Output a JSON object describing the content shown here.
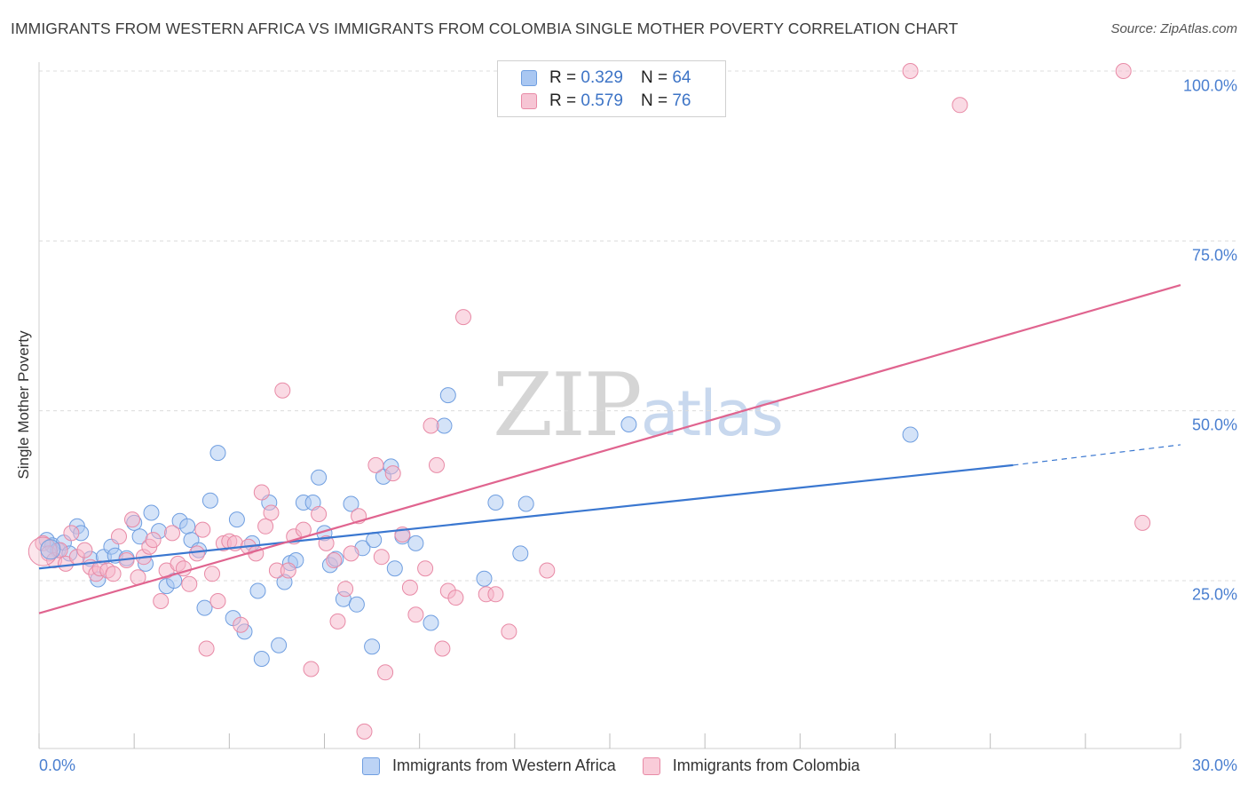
{
  "title": "IMMIGRANTS FROM WESTERN AFRICA VS IMMIGRANTS FROM COLOMBIA SINGLE MOTHER POVERTY CORRELATION CHART",
  "source": "Source: ZipAtlas.com",
  "watermark": {
    "zip": "ZIP",
    "atlas": "atlas"
  },
  "colors": {
    "blue_fill": "#a9c7f2",
    "blue_stroke": "#6f9ee0",
    "blue_line": "#3a77d0",
    "pink_fill": "#f6b6c9",
    "pink_stroke": "#e88aa6",
    "pink_line": "#e0648f",
    "tick_label": "#4a7fd0",
    "grid": "#dcdcdc"
  },
  "legend_top": {
    "rows": [
      {
        "r_label": "R = ",
        "r_value": "0.329",
        "n_label": "N = ",
        "n_value": "64"
      },
      {
        "r_label": "R = ",
        "r_value": "0.579",
        "n_label": "N = ",
        "n_value": "76"
      }
    ]
  },
  "legend_bottom": [
    "Immigrants from Western Africa",
    "Immigrants from Colombia"
  ],
  "chart_data": {
    "type": "scatter",
    "title": "IMMIGRANTS FROM WESTERN AFRICA VS IMMIGRANTS FROM COLOMBIA SINGLE MOTHER POVERTY CORRELATION CHART",
    "xlabel": "",
    "ylabel": "Single Mother Poverty",
    "xlim": [
      0,
      30
    ],
    "ylim": [
      0,
      105
    ],
    "x_tick_labels": [
      "0.0%",
      "30.0%"
    ],
    "y_ticks": [
      25,
      50,
      75,
      100
    ],
    "y_tick_labels": [
      "25.0%",
      "50.0%",
      "75.0%",
      "100.0%"
    ],
    "grid": true,
    "legend_position": "top-center",
    "series": [
      {
        "name": "Immigrants from Western Africa",
        "color": "blue",
        "R": 0.329,
        "N": 64,
        "trend": {
          "x0": 0,
          "y0": 26.8,
          "x1": 25.6,
          "y1": 42.0,
          "dash_to_x": 30,
          "dash_to_y": 45.0
        },
        "points": [
          [
            0.2,
            31.0
          ],
          [
            0.35,
            30.2
          ],
          [
            0.5,
            29.5
          ],
          [
            0.65,
            30.6
          ],
          [
            0.8,
            29.0
          ],
          [
            1.0,
            33.0
          ],
          [
            1.1,
            32.0
          ],
          [
            1.35,
            28.2
          ],
          [
            1.55,
            25.2
          ],
          [
            1.7,
            28.5
          ],
          [
            1.9,
            30.0
          ],
          [
            2.0,
            28.7
          ],
          [
            2.3,
            28.3
          ],
          [
            2.5,
            33.5
          ],
          [
            2.65,
            31.5
          ],
          [
            2.8,
            27.5
          ],
          [
            2.95,
            35.0
          ],
          [
            3.15,
            32.3
          ],
          [
            3.35,
            24.2
          ],
          [
            3.55,
            25.0
          ],
          [
            3.7,
            33.8
          ],
          [
            3.9,
            33.0
          ],
          [
            4.0,
            31.0
          ],
          [
            4.2,
            29.5
          ],
          [
            4.35,
            21.0
          ],
          [
            4.5,
            36.8
          ],
          [
            4.7,
            43.8
          ],
          [
            5.1,
            19.5
          ],
          [
            5.2,
            34.0
          ],
          [
            5.4,
            17.5
          ],
          [
            5.6,
            30.5
          ],
          [
            5.75,
            23.5
          ],
          [
            5.85,
            13.5
          ],
          [
            6.05,
            36.5
          ],
          [
            6.3,
            15.5
          ],
          [
            6.45,
            24.8
          ],
          [
            6.6,
            27.6
          ],
          [
            6.75,
            28.0
          ],
          [
            6.95,
            36.5
          ],
          [
            7.2,
            36.5
          ],
          [
            7.35,
            40.2
          ],
          [
            7.5,
            32.0
          ],
          [
            7.65,
            27.3
          ],
          [
            7.8,
            28.2
          ],
          [
            8.0,
            22.3
          ],
          [
            8.2,
            36.3
          ],
          [
            8.35,
            21.5
          ],
          [
            8.5,
            29.8
          ],
          [
            8.75,
            15.3
          ],
          [
            8.8,
            31.0
          ],
          [
            9.05,
            40.3
          ],
          [
            9.25,
            41.8
          ],
          [
            9.35,
            26.8
          ],
          [
            9.55,
            31.5
          ],
          [
            9.9,
            30.5
          ],
          [
            10.3,
            18.8
          ],
          [
            10.65,
            47.8
          ],
          [
            10.75,
            52.3
          ],
          [
            11.7,
            25.3
          ],
          [
            12.0,
            36.5
          ],
          [
            12.65,
            29.0
          ],
          [
            12.8,
            36.3
          ],
          [
            15.5,
            48.0
          ],
          [
            22.9,
            46.5
          ]
        ]
      },
      {
        "name": "Immigrants from Colombia",
        "color": "pink",
        "R": 0.579,
        "N": 76,
        "trend": {
          "x0": 0,
          "y0": 20.2,
          "x1": 30,
          "y1": 68.5
        },
        "points": [
          [
            0.1,
            30.5
          ],
          [
            0.25,
            29.0
          ],
          [
            0.4,
            28.0
          ],
          [
            0.55,
            29.5
          ],
          [
            0.7,
            27.5
          ],
          [
            0.85,
            32.0
          ],
          [
            1.0,
            28.5
          ],
          [
            1.2,
            29.5
          ],
          [
            1.35,
            27.0
          ],
          [
            1.5,
            26.0
          ],
          [
            1.6,
            26.8
          ],
          [
            1.8,
            26.5
          ],
          [
            1.95,
            26.0
          ],
          [
            2.1,
            31.5
          ],
          [
            2.3,
            28.0
          ],
          [
            2.45,
            34.0
          ],
          [
            2.6,
            25.5
          ],
          [
            2.75,
            28.5
          ],
          [
            2.9,
            30.0
          ],
          [
            3.0,
            31.0
          ],
          [
            3.2,
            22.0
          ],
          [
            3.35,
            26.5
          ],
          [
            3.5,
            32.0
          ],
          [
            3.65,
            27.5
          ],
          [
            3.8,
            26.8
          ],
          [
            3.95,
            24.5
          ],
          [
            4.15,
            29.0
          ],
          [
            4.3,
            32.5
          ],
          [
            4.4,
            15.0
          ],
          [
            4.55,
            26.0
          ],
          [
            4.7,
            22.0
          ],
          [
            4.85,
            30.5
          ],
          [
            5.0,
            30.8
          ],
          [
            5.15,
            30.5
          ],
          [
            5.3,
            18.5
          ],
          [
            5.5,
            30.0
          ],
          [
            5.7,
            29.0
          ],
          [
            5.85,
            38.0
          ],
          [
            5.95,
            33.0
          ],
          [
            6.1,
            35.0
          ],
          [
            6.25,
            26.5
          ],
          [
            6.4,
            53.0
          ],
          [
            6.55,
            26.5
          ],
          [
            6.7,
            31.5
          ],
          [
            6.95,
            32.5
          ],
          [
            7.15,
            12.0
          ],
          [
            7.35,
            34.8
          ],
          [
            7.55,
            30.5
          ],
          [
            7.75,
            28.0
          ],
          [
            7.85,
            19.0
          ],
          [
            8.05,
            23.8
          ],
          [
            8.2,
            29.0
          ],
          [
            8.4,
            34.5
          ],
          [
            8.55,
            2.8
          ],
          [
            8.85,
            42.0
          ],
          [
            9.0,
            28.5
          ],
          [
            9.1,
            11.5
          ],
          [
            9.3,
            40.8
          ],
          [
            9.55,
            31.8
          ],
          [
            9.75,
            24.0
          ],
          [
            9.9,
            20.0
          ],
          [
            10.15,
            26.8
          ],
          [
            10.3,
            47.8
          ],
          [
            10.45,
            42.0
          ],
          [
            10.6,
            15.0
          ],
          [
            10.75,
            23.5
          ],
          [
            10.95,
            22.5
          ],
          [
            11.15,
            63.8
          ],
          [
            11.75,
            23.0
          ],
          [
            12.35,
            17.5
          ],
          [
            13.35,
            26.5
          ],
          [
            22.9,
            100.0
          ],
          [
            24.2,
            95.0
          ],
          [
            28.5,
            100.0
          ],
          [
            29.0,
            33.5
          ],
          [
            12.0,
            23.0
          ]
        ]
      }
    ]
  }
}
